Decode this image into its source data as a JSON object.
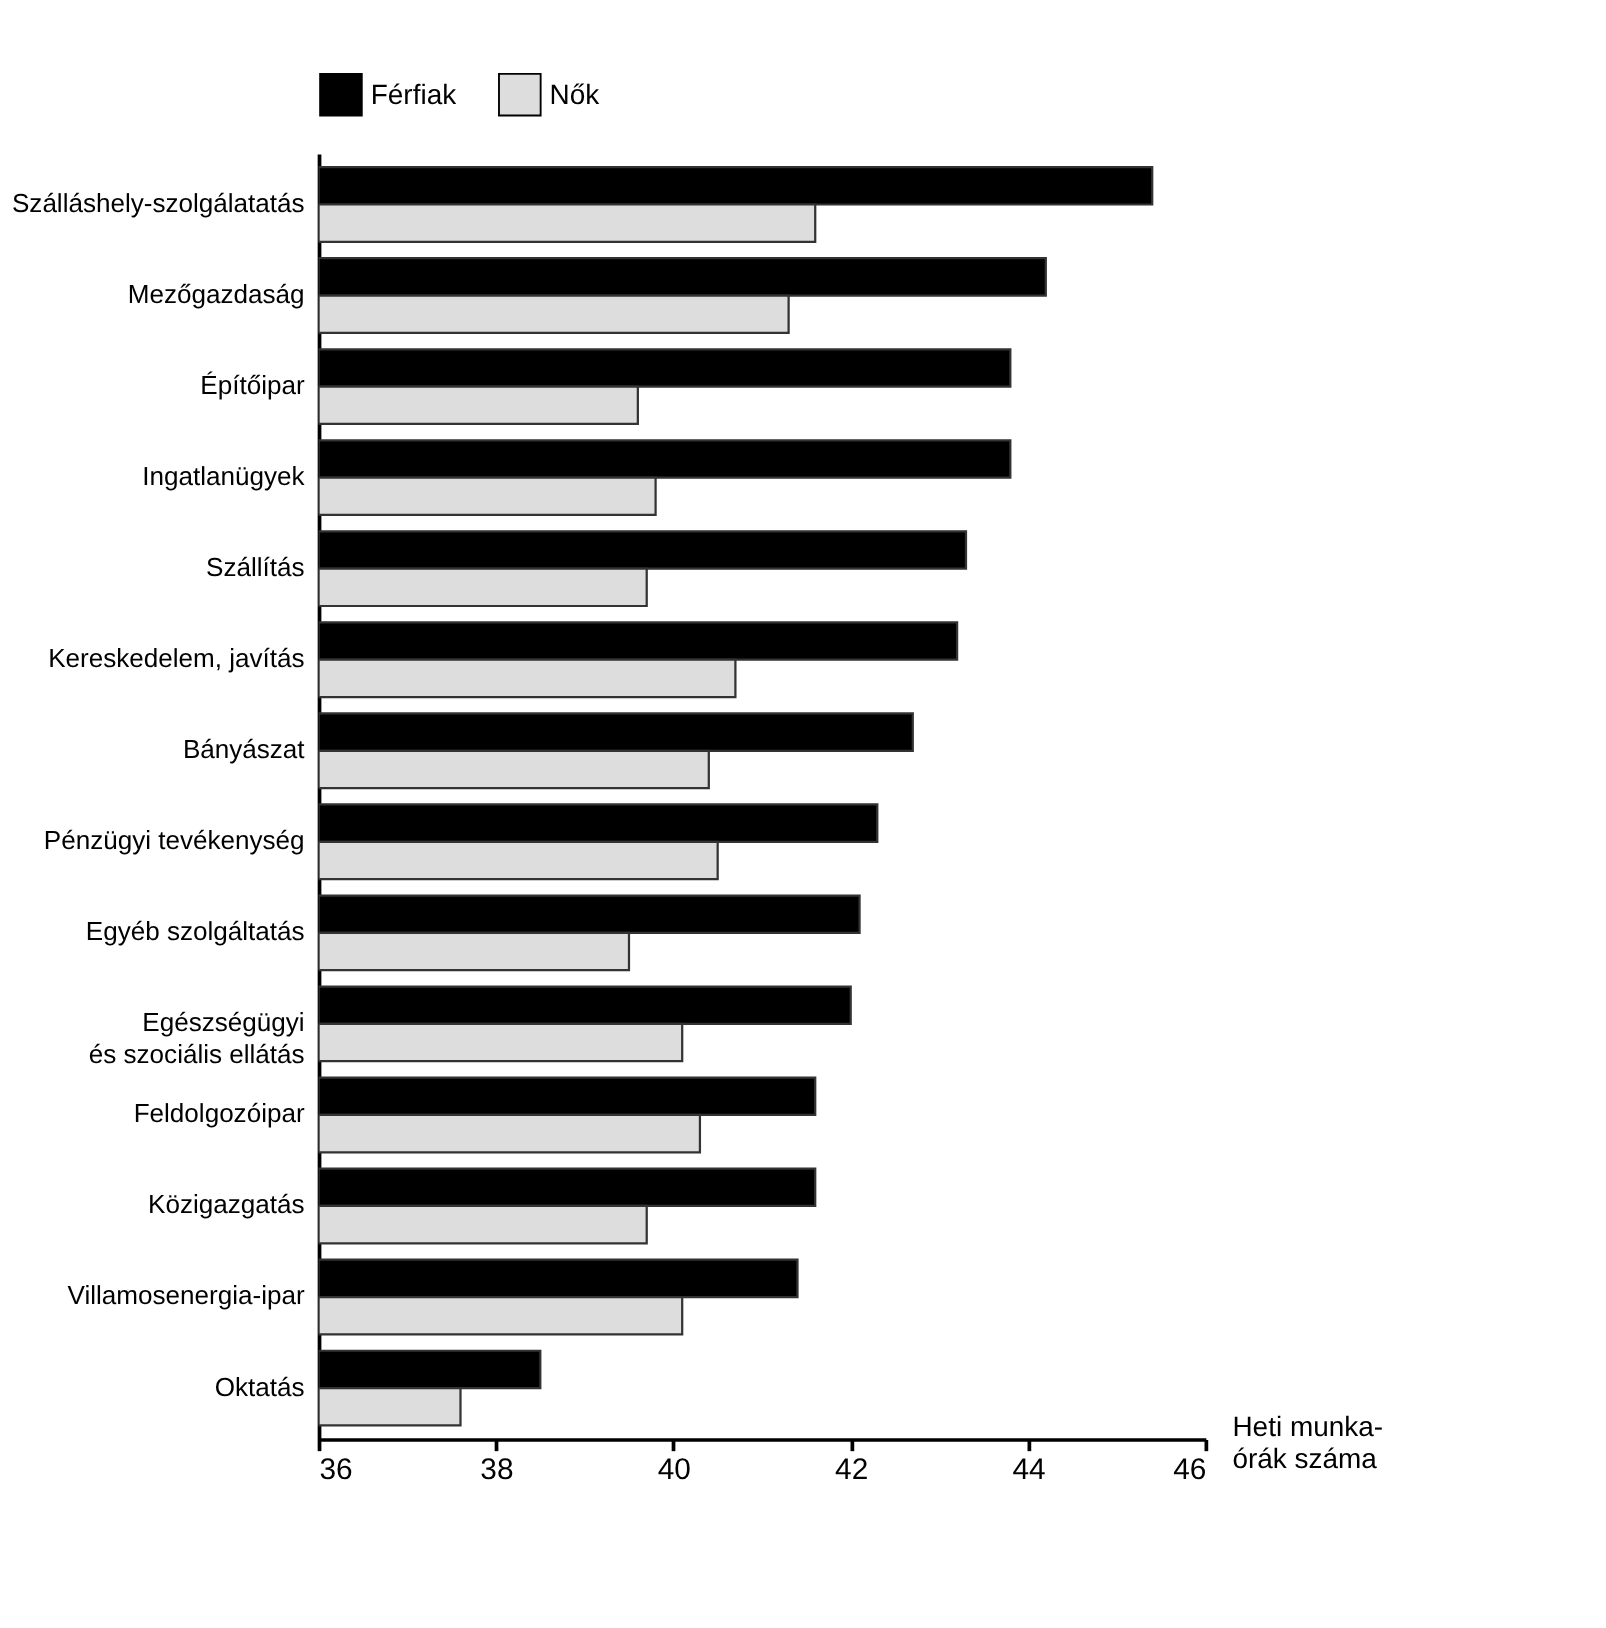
{
  "chart_data": {
    "type": "bar",
    "orientation": "horizontal",
    "xlabel": "Heti munka-\nórák száma",
    "categories": [
      "Szálláshely-szolgálatatás",
      "Mezőgazdaság",
      "Építőipar",
      "Ingatlanügyek",
      "Szállítás",
      "Kereskedelem, javítás",
      "Bányászat",
      "Pénzügyi tevékenység",
      "Egyéb szolgáltatás",
      "Egészségügyi\nés szociális ellátás",
      "Feldolgozóipar",
      "Közigazgatás",
      "Villamosenergia-ipar",
      "Oktatás"
    ],
    "series": [
      {
        "name": "Férfiak",
        "color": "#000000",
        "values": [
          45.4,
          44.2,
          43.8,
          43.8,
          43.3,
          43.2,
          42.7,
          42.3,
          42.1,
          42.0,
          41.6,
          41.6,
          41.4,
          38.5
        ]
      },
      {
        "name": "Nők",
        "color": "#dddddd",
        "values": [
          41.6,
          41.3,
          39.6,
          39.8,
          39.7,
          40.7,
          40.4,
          40.5,
          39.5,
          40.1,
          40.3,
          39.7,
          40.1,
          37.6
        ]
      }
    ],
    "xlim": [
      36,
      46
    ],
    "xticks": [
      36,
      38,
      40,
      42,
      44,
      46
    ],
    "legend": "top"
  }
}
